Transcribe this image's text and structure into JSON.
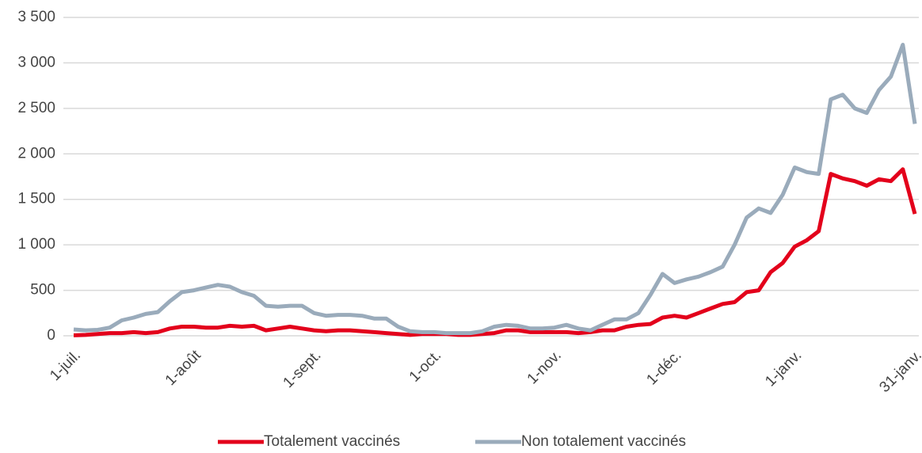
{
  "chart_data": {
    "type": "line",
    "categories": [
      "1-juil.",
      null,
      null,
      null,
      null,
      null,
      null,
      null,
      null,
      null,
      "1-août",
      null,
      null,
      null,
      null,
      null,
      null,
      null,
      null,
      null,
      "1-sept.",
      null,
      null,
      null,
      null,
      null,
      null,
      null,
      null,
      null,
      "1-oct.",
      null,
      null,
      null,
      null,
      null,
      null,
      null,
      null,
      null,
      "1-nov.",
      null,
      null,
      null,
      null,
      null,
      null,
      null,
      null,
      null,
      "1-déc.",
      null,
      null,
      null,
      null,
      null,
      null,
      null,
      null,
      null,
      "1-janv.",
      null,
      null,
      null,
      null,
      null,
      null,
      null,
      null,
      null,
      "31-janv."
    ],
    "series": [
      {
        "name": "Totalement vaccinés",
        "color": "#e3001b",
        "values": [
          5,
          10,
          20,
          30,
          30,
          40,
          30,
          40,
          80,
          100,
          100,
          90,
          90,
          110,
          100,
          110,
          60,
          80,
          100,
          80,
          60,
          50,
          60,
          60,
          50,
          40,
          30,
          20,
          10,
          20,
          20,
          20,
          10,
          10,
          20,
          30,
          60,
          60,
          40,
          40,
          40,
          40,
          30,
          40,
          60,
          60,
          100,
          120,
          130,
          200,
          220,
          200,
          250,
          300,
          350,
          370,
          480,
          500,
          700,
          800,
          980,
          1050,
          1150,
          1780,
          1730,
          1700,
          1650,
          1720,
          1700,
          1830,
          1340
        ]
      },
      {
        "name": "Non totalement vaccinés",
        "color": "#9aabbb",
        "values": [
          70,
          60,
          65,
          90,
          170,
          200,
          240,
          260,
          380,
          480,
          500,
          530,
          560,
          540,
          480,
          440,
          330,
          320,
          330,
          330,
          250,
          220,
          230,
          230,
          220,
          190,
          190,
          100,
          50,
          40,
          40,
          30,
          30,
          30,
          50,
          100,
          120,
          110,
          80,
          80,
          90,
          120,
          80,
          60,
          120,
          180,
          180,
          250,
          450,
          680,
          580,
          620,
          650,
          700,
          760,
          1000,
          1300,
          1400,
          1350,
          1550,
          1850,
          1800,
          1780,
          2600,
          2650,
          2500,
          2450,
          2700,
          2850,
          3200,
          2330
        ]
      }
    ],
    "ylim": [
      0,
      3500
    ],
    "yticks": [
      0,
      500,
      {
        "value": 1000,
        "label": "1 000"
      },
      {
        "value": 1500,
        "label": "1 500"
      },
      {
        "value": 2000,
        "label": "2 000"
      },
      {
        "value": 2500,
        "label": "2 500"
      },
      {
        "value": 3000,
        "label": "3 000"
      },
      {
        "value": 3500,
        "label": "3 500"
      }
    ],
    "grid": true,
    "legend": "bottom"
  }
}
